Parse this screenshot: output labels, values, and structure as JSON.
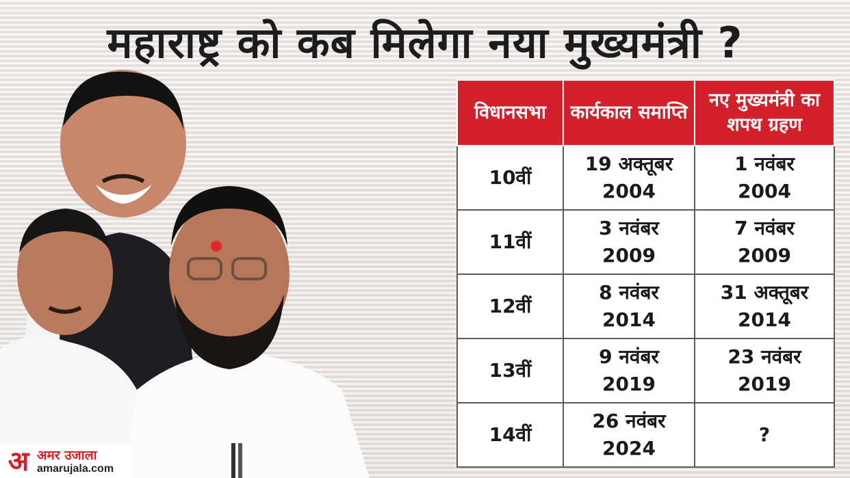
{
  "headline": "महाराष्ट्र को कब मिलेगा नया मुख्यमंत्री ?",
  "table": {
    "headers": [
      {
        "lines": [
          "विधानसभा"
        ]
      },
      {
        "lines": [
          "कार्यकाल",
          "समाप्ति"
        ]
      },
      {
        "lines": [
          "नए मुख्यमंत्री",
          "का शपथ ग्रहण"
        ]
      }
    ],
    "rows": [
      {
        "assembly": "10वीं",
        "term_end": [
          "19 अक्तूबर",
          "2004"
        ],
        "oath": [
          "1 नवंबर",
          "2004"
        ]
      },
      {
        "assembly": "11वीं",
        "term_end": [
          "3 नवंबर",
          "2009"
        ],
        "oath": [
          "7 नवंबर",
          "2009"
        ]
      },
      {
        "assembly": "12वीं",
        "term_end": [
          "8 नवंबर",
          "2014"
        ],
        "oath": [
          "31 अक्तूबर",
          "2014"
        ]
      },
      {
        "assembly": "13वीं",
        "term_end": [
          "9 नवंबर",
          "2019"
        ],
        "oath": [
          "23 नवंबर",
          "2019"
        ]
      },
      {
        "assembly": "14वीं",
        "term_end": [
          "26 नवंबर",
          "2024"
        ],
        "oath": [
          "?"
        ]
      }
    ]
  },
  "logo": {
    "mark": "अ",
    "name": "अमर उजाला",
    "url": "amarujala.com"
  },
  "colors": {
    "header_red": "#d3202a",
    "headline_text": "#1c1c1c",
    "background": "#eeeae6"
  }
}
